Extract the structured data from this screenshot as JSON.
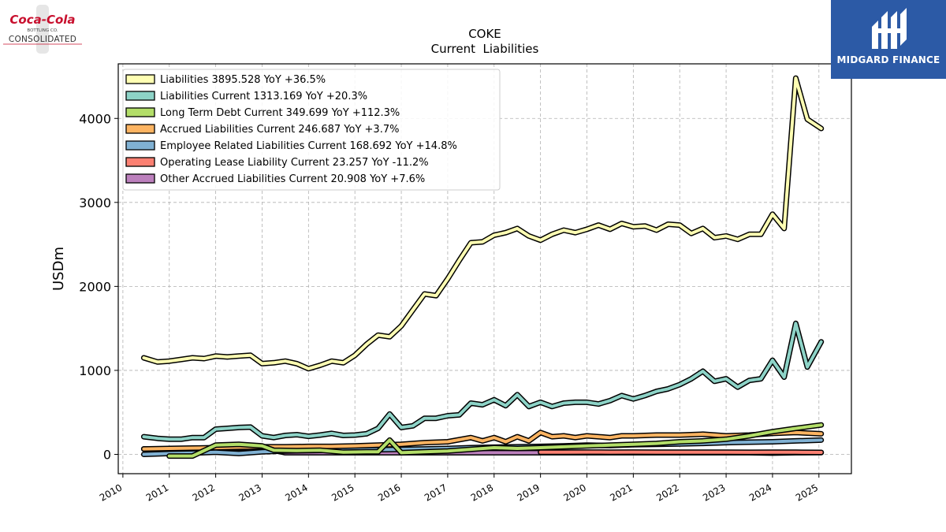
{
  "logos": {
    "left_script": "Coca-Cola",
    "left_small": "BOTTLING CO.",
    "left_main": "CONSOLIDATED",
    "right_name": "MIDGARD FINANCE"
  },
  "chart_data": {
    "type": "line",
    "title": "COKE",
    "subtitle": "Current  Liabilities",
    "ylabel": "USDm",
    "xlabel": "",
    "xlim": [
      2009.9,
      2025.7
    ],
    "ylim": [
      -230,
      4650
    ],
    "yticks": [
      0,
      1000,
      2000,
      3000,
      4000
    ],
    "xticks": [
      "2010",
      "2011",
      "2012",
      "2013",
      "2014",
      "2015",
      "2016",
      "2017",
      "2018",
      "2019",
      "2020",
      "2021",
      "2022",
      "2023",
      "2024",
      "2025"
    ],
    "grid": true,
    "legend_position": "upper-left",
    "series": [
      {
        "name": "Liabilities",
        "legend": "Liabilities  3895.528 YoY +36.5%",
        "color": "#ffffb3",
        "points": [
          [
            2010.45,
            1150
          ],
          [
            2010.75,
            1100
          ],
          [
            2011.0,
            1110
          ],
          [
            2011.25,
            1130
          ],
          [
            2011.5,
            1150
          ],
          [
            2011.75,
            1140
          ],
          [
            2012.0,
            1170
          ],
          [
            2012.25,
            1160
          ],
          [
            2012.5,
            1170
          ],
          [
            2012.75,
            1180
          ],
          [
            2013.0,
            1080
          ],
          [
            2013.25,
            1090
          ],
          [
            2013.5,
            1110
          ],
          [
            2013.75,
            1080
          ],
          [
            2014.0,
            1020
          ],
          [
            2014.25,
            1060
          ],
          [
            2014.5,
            1110
          ],
          [
            2014.75,
            1090
          ],
          [
            2015.0,
            1180
          ],
          [
            2015.25,
            1310
          ],
          [
            2015.5,
            1420
          ],
          [
            2015.75,
            1400
          ],
          [
            2016.0,
            1530
          ],
          [
            2016.25,
            1720
          ],
          [
            2016.5,
            1910
          ],
          [
            2016.75,
            1890
          ],
          [
            2017.0,
            2090
          ],
          [
            2017.25,
            2310
          ],
          [
            2017.5,
            2520
          ],
          [
            2017.75,
            2530
          ],
          [
            2018.0,
            2610
          ],
          [
            2018.25,
            2640
          ],
          [
            2018.5,
            2690
          ],
          [
            2018.75,
            2600
          ],
          [
            2019.0,
            2550
          ],
          [
            2019.25,
            2620
          ],
          [
            2019.5,
            2670
          ],
          [
            2019.75,
            2640
          ],
          [
            2020.0,
            2680
          ],
          [
            2020.25,
            2730
          ],
          [
            2020.5,
            2680
          ],
          [
            2020.75,
            2750
          ],
          [
            2021.0,
            2710
          ],
          [
            2021.25,
            2720
          ],
          [
            2021.5,
            2670
          ],
          [
            2021.75,
            2740
          ],
          [
            2022.0,
            2730
          ],
          [
            2022.25,
            2630
          ],
          [
            2022.5,
            2690
          ],
          [
            2022.75,
            2580
          ],
          [
            2023.0,
            2600
          ],
          [
            2023.25,
            2560
          ],
          [
            2023.5,
            2620
          ],
          [
            2023.75,
            2620
          ],
          [
            2024.0,
            2860
          ],
          [
            2024.25,
            2690
          ],
          [
            2024.5,
            4480
          ],
          [
            2024.75,
            3990
          ],
          [
            2025.05,
            3880
          ]
        ]
      },
      {
        "name": "Liabilities Current",
        "legend": "Liabilities Current  1313.169 YoY +20.3%",
        "color": "#8dd3c7",
        "points": [
          [
            2010.45,
            210
          ],
          [
            2010.75,
            190
          ],
          [
            2011.0,
            180
          ],
          [
            2011.25,
            180
          ],
          [
            2011.5,
            200
          ],
          [
            2011.75,
            200
          ],
          [
            2012.0,
            300
          ],
          [
            2012.25,
            310
          ],
          [
            2012.5,
            320
          ],
          [
            2012.75,
            325
          ],
          [
            2013.0,
            220
          ],
          [
            2013.25,
            200
          ],
          [
            2013.5,
            225
          ],
          [
            2013.75,
            235
          ],
          [
            2014.0,
            215
          ],
          [
            2014.25,
            230
          ],
          [
            2014.5,
            250
          ],
          [
            2014.75,
            225
          ],
          [
            2015.0,
            230
          ],
          [
            2015.25,
            245
          ],
          [
            2015.5,
            310
          ],
          [
            2015.75,
            480
          ],
          [
            2016.0,
            320
          ],
          [
            2016.25,
            340
          ],
          [
            2016.5,
            430
          ],
          [
            2016.75,
            430
          ],
          [
            2017.0,
            460
          ],
          [
            2017.25,
            470
          ],
          [
            2017.5,
            610
          ],
          [
            2017.75,
            590
          ],
          [
            2018.0,
            650
          ],
          [
            2018.25,
            580
          ],
          [
            2018.5,
            710
          ],
          [
            2018.75,
            570
          ],
          [
            2019.0,
            620
          ],
          [
            2019.25,
            570
          ],
          [
            2019.5,
            610
          ],
          [
            2019.75,
            620
          ],
          [
            2020.0,
            620
          ],
          [
            2020.25,
            600
          ],
          [
            2020.5,
            640
          ],
          [
            2020.75,
            700
          ],
          [
            2021.0,
            660
          ],
          [
            2021.25,
            700
          ],
          [
            2021.5,
            750
          ],
          [
            2021.75,
            780
          ],
          [
            2022.0,
            830
          ],
          [
            2022.25,
            900
          ],
          [
            2022.5,
            990
          ],
          [
            2022.75,
            870
          ],
          [
            2023.0,
            900
          ],
          [
            2023.25,
            800
          ],
          [
            2023.5,
            880
          ],
          [
            2023.75,
            900
          ],
          [
            2024.0,
            1120
          ],
          [
            2024.25,
            920
          ],
          [
            2024.5,
            1560
          ],
          [
            2024.75,
            1040
          ],
          [
            2025.05,
            1340
          ]
        ]
      },
      {
        "name": "Long Term Debt Current",
        "legend": "Long Term Debt Current  349.699 YoY +112.3%",
        "color": "#b3de69",
        "points": [
          [
            2011.0,
            -20
          ],
          [
            2011.5,
            -20
          ],
          [
            2012.0,
            110
          ],
          [
            2012.5,
            120
          ],
          [
            2013.0,
            100
          ],
          [
            2013.25,
            50
          ],
          [
            2013.75,
            45
          ],
          [
            2014.25,
            50
          ],
          [
            2014.75,
            25
          ],
          [
            2015.25,
            30
          ],
          [
            2015.5,
            30
          ],
          [
            2015.75,
            170
          ],
          [
            2016.0,
            20
          ],
          [
            2016.5,
            30
          ],
          [
            2017.0,
            40
          ],
          [
            2017.5,
            60
          ],
          [
            2018.0,
            80
          ],
          [
            2018.5,
            70
          ],
          [
            2019.0,
            80
          ],
          [
            2019.5,
            90
          ],
          [
            2020.0,
            100
          ],
          [
            2020.5,
            110
          ],
          [
            2021.0,
            120
          ],
          [
            2021.5,
            130
          ],
          [
            2022.0,
            150
          ],
          [
            2022.5,
            160
          ],
          [
            2023.0,
            180
          ],
          [
            2023.5,
            220
          ],
          [
            2024.0,
            270
          ],
          [
            2024.5,
            310
          ],
          [
            2025.05,
            350
          ]
        ]
      },
      {
        "name": "Accrued Liabilities Current",
        "legend": "Accrued Liabilities Current  246.687 YoY +3.7%",
        "color": "#fdb462",
        "points": [
          [
            2010.45,
            65
          ],
          [
            2011.0,
            70
          ],
          [
            2011.5,
            75
          ],
          [
            2012.0,
            80
          ],
          [
            2012.5,
            85
          ],
          [
            2013.0,
            90
          ],
          [
            2013.5,
            90
          ],
          [
            2014.0,
            95
          ],
          [
            2014.5,
            95
          ],
          [
            2015.0,
            100
          ],
          [
            2015.5,
            110
          ],
          [
            2016.0,
            120
          ],
          [
            2016.5,
            140
          ],
          [
            2017.0,
            150
          ],
          [
            2017.5,
            200
          ],
          [
            2017.75,
            160
          ],
          [
            2018.0,
            200
          ],
          [
            2018.25,
            150
          ],
          [
            2018.5,
            210
          ],
          [
            2018.75,
            160
          ],
          [
            2019.0,
            260
          ],
          [
            2019.25,
            210
          ],
          [
            2019.5,
            220
          ],
          [
            2019.75,
            200
          ],
          [
            2020.0,
            220
          ],
          [
            2020.25,
            210
          ],
          [
            2020.5,
            200
          ],
          [
            2020.75,
            220
          ],
          [
            2021.0,
            220
          ],
          [
            2021.5,
            230
          ],
          [
            2022.0,
            230
          ],
          [
            2022.5,
            240
          ],
          [
            2023.0,
            220
          ],
          [
            2023.5,
            230
          ],
          [
            2024.0,
            250
          ],
          [
            2024.5,
            260
          ],
          [
            2025.05,
            245
          ]
        ]
      },
      {
        "name": "Employee Related Liabilities Current",
        "legend": "Employee Related Liabilities Current  168.692 YoY +14.8%",
        "color": "#80b1d3",
        "points": [
          [
            2010.45,
            0
          ],
          [
            2011.0,
            10
          ],
          [
            2011.5,
            15
          ],
          [
            2012.0,
            25
          ],
          [
            2012.5,
            10
          ],
          [
            2013.0,
            30
          ],
          [
            2013.5,
            40
          ],
          [
            2014.0,
            45
          ],
          [
            2014.5,
            50
          ],
          [
            2015.0,
            55
          ],
          [
            2015.5,
            55
          ],
          [
            2016.0,
            60
          ],
          [
            2016.5,
            65
          ],
          [
            2017.0,
            70
          ],
          [
            2017.5,
            80
          ],
          [
            2018.0,
            85
          ],
          [
            2018.5,
            90
          ],
          [
            2019.0,
            95
          ],
          [
            2019.5,
            100
          ],
          [
            2020.0,
            110
          ],
          [
            2020.5,
            105
          ],
          [
            2021.0,
            115
          ],
          [
            2021.5,
            120
          ],
          [
            2022.0,
            125
          ],
          [
            2022.5,
            130
          ],
          [
            2023.0,
            140
          ],
          [
            2023.5,
            145
          ],
          [
            2024.0,
            150
          ],
          [
            2024.5,
            160
          ],
          [
            2025.05,
            170
          ]
        ]
      },
      {
        "name": "Operating Lease Liability Current",
        "legend": "Operating Lease Liability Current  23.257 YoY -11.2%",
        "color": "#fb8072",
        "points": [
          [
            2019.0,
            25
          ],
          [
            2019.5,
            26
          ],
          [
            2020.0,
            27
          ],
          [
            2020.5,
            26
          ],
          [
            2021.0,
            27
          ],
          [
            2021.5,
            26
          ],
          [
            2022.0,
            26
          ],
          [
            2022.5,
            25
          ],
          [
            2023.0,
            26
          ],
          [
            2023.5,
            24
          ],
          [
            2024.0,
            26
          ],
          [
            2024.5,
            25
          ],
          [
            2025.05,
            23
          ]
        ]
      },
      {
        "name": "Other Accrued Liabilities Current",
        "legend": "Other Accrued Liabilities Current  20.908 YoY +7.6%",
        "color": "#bc80bd",
        "points": [
          [
            2010.45,
            65
          ],
          [
            2011.0,
            65
          ],
          [
            2011.5,
            70
          ],
          [
            2012.0,
            70
          ],
          [
            2012.5,
            75
          ],
          [
            2013.0,
            70
          ],
          [
            2013.25,
            50
          ],
          [
            2013.5,
            20
          ],
          [
            2014.0,
            20
          ],
          [
            2014.5,
            20
          ],
          [
            2015.0,
            20
          ],
          [
            2015.5,
            20
          ],
          [
            2016.0,
            20
          ],
          [
            2016.5,
            20
          ],
          [
            2017.0,
            20
          ],
          [
            2017.5,
            20
          ],
          [
            2018.0,
            20
          ],
          [
            2018.5,
            20
          ],
          [
            2019.0,
            20
          ],
          [
            2019.5,
            20
          ],
          [
            2020.0,
            20
          ],
          [
            2020.5,
            20
          ],
          [
            2021.0,
            20
          ],
          [
            2021.5,
            20
          ],
          [
            2022.0,
            20
          ],
          [
            2022.5,
            20
          ],
          [
            2023.0,
            20
          ],
          [
            2023.5,
            20
          ],
          [
            2024.0,
            15
          ],
          [
            2024.5,
            20
          ],
          [
            2025.05,
            21
          ]
        ]
      }
    ]
  }
}
